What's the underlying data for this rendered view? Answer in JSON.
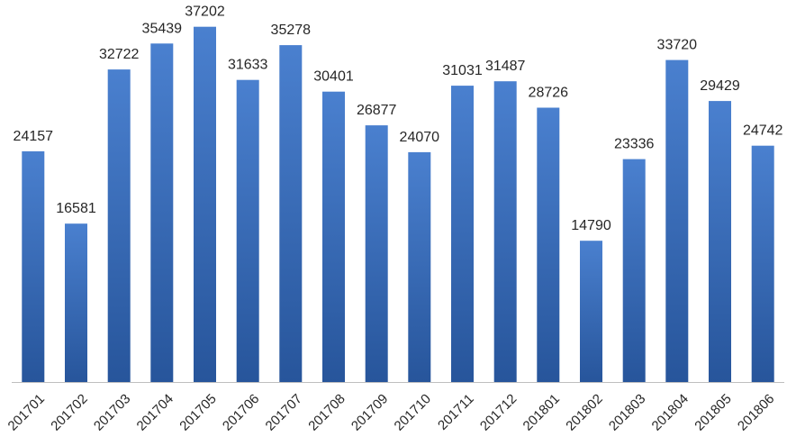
{
  "chart_data": {
    "type": "bar",
    "categories": [
      "201701",
      "201702",
      "201703",
      "201704",
      "201705",
      "201706",
      "201707",
      "201708",
      "201709",
      "201710",
      "201711",
      "201712",
      "201801",
      "201802",
      "201803",
      "201804",
      "201805",
      "201806"
    ],
    "values": [
      24157,
      16581,
      32722,
      35439,
      37202,
      31633,
      35278,
      30401,
      26877,
      24070,
      31031,
      31487,
      28726,
      14790,
      23336,
      33720,
      29429,
      24742
    ],
    "ylim": [
      0,
      40000
    ],
    "grid": false,
    "legend": "none",
    "data_labels": true,
    "colors": {
      "bar_top": "#4a80cf",
      "bar_bottom": "#27559b",
      "axis": "#bfbfbf",
      "text": "#262626"
    }
  }
}
